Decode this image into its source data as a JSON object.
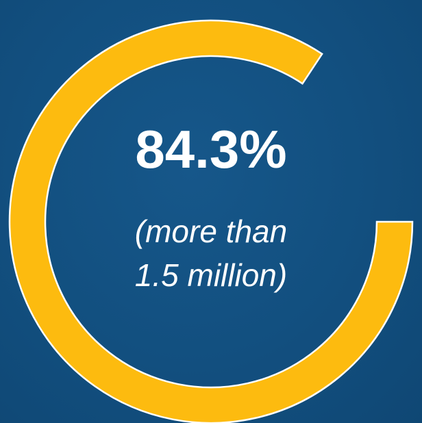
{
  "chart_data": {
    "type": "pie",
    "variant": "donut",
    "value_percent": 84.3,
    "label": "84.3%",
    "sublabel_lines": [
      "(more than",
      "1.5 million)"
    ],
    "colors": {
      "filled": "#fdbb0f",
      "outline": "#ffffff",
      "background": "#124f7f",
      "text": "#ffffff"
    }
  }
}
